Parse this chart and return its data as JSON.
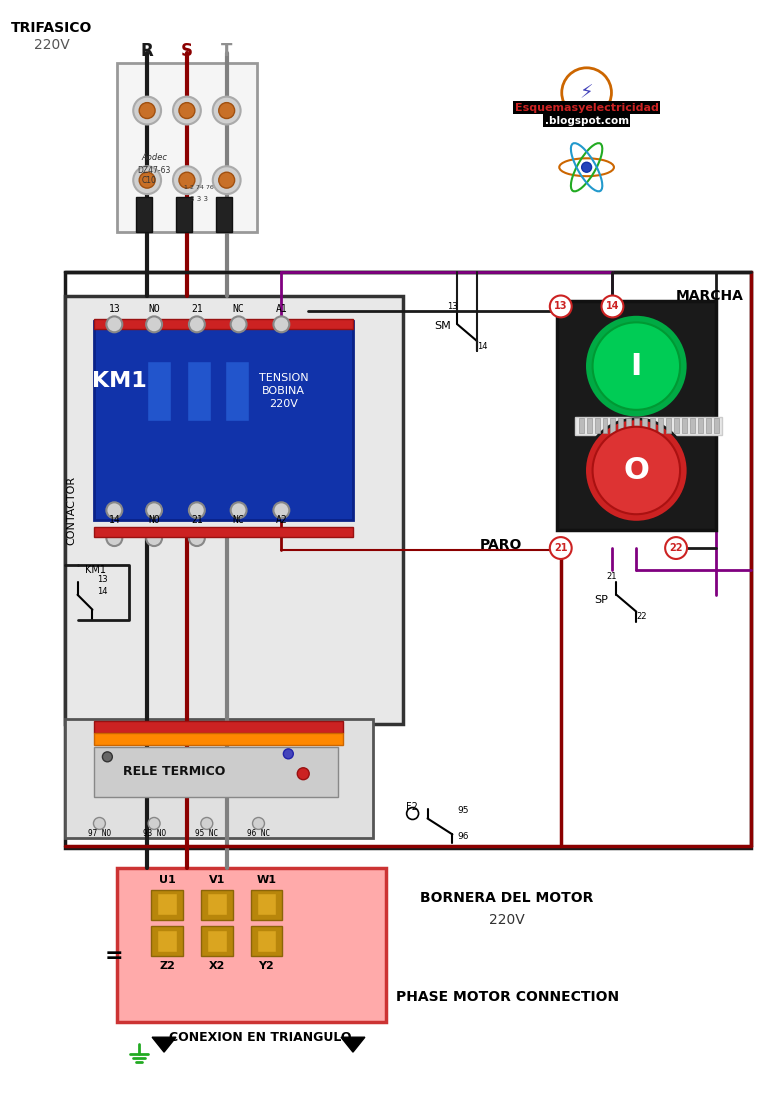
{
  "bg_color": "#f0f0f0",
  "title_text": "TRIFASICO\n220V",
  "phase_labels": [
    "R",
    "S",
    "T"
  ],
  "phase_colors": [
    "#1a1a1a",
    "#8b0000",
    "#808080"
  ],
  "contactor_label": "KM1",
  "contactor_text": "CONTACTOR",
  "tension_text": "TENSION\nBOBINA\n220V",
  "relay_text": "RELE TERMICO",
  "motor_terminal_text": "BORNERA DEL MOTOR\n220V",
  "phase_motor_text": "PHASE MOTOR CONNECTION",
  "conexion_text": "CONEXION EN TRIANGULO",
  "marcha_text": "MARCHA",
  "paro_text": "PARO",
  "terminal_top_labels": [
    "13",
    "NO",
    "21",
    "NC",
    "A1"
  ],
  "terminal_bot_labels": [
    "14",
    "NO",
    "21",
    "NC",
    "A2"
  ],
  "motor_top_labels": [
    "U1",
    "V1",
    "W1"
  ],
  "motor_bot_labels": [
    "Z2",
    "X2",
    "Y2"
  ],
  "relay_bot_labels": [
    "97 NO",
    "93 NO",
    "95 NC",
    "96 NC"
  ],
  "sm_label": "SM",
  "sp_label": "SP",
  "f2_label": "F2",
  "wire_black": "#1a1a1a",
  "wire_red": "#8b0000",
  "wire_gray": "#808080",
  "wire_purple": "#800080",
  "contactor_bg": "#2244aa",
  "relay_bg": "#cc4444",
  "motor_bg": "#ffaaaa",
  "node_numbers": [
    "13",
    "14",
    "21",
    "22"
  ],
  "marcha_circle_color": "#00aa44",
  "paro_circle_color": "#cc2222"
}
